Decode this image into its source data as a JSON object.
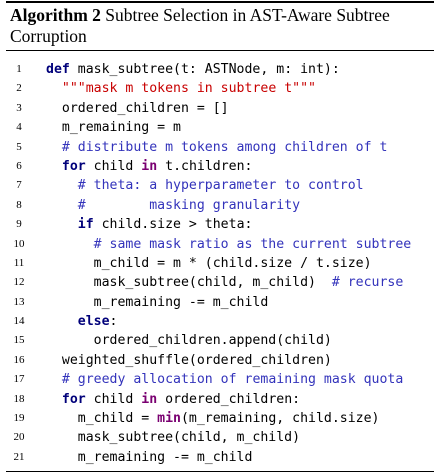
{
  "caption": {
    "label": "Algorithm 2",
    "title": "Subtree Selection in AST-Aware Subtree Corruption"
  },
  "lines": [
    {
      "n": "1",
      "segs": [
        [
          "kw",
          "def "
        ],
        [
          "",
          "mask_subtree(t: ASTNode, m: int):"
        ]
      ]
    },
    {
      "n": "2",
      "segs": [
        [
          "",
          "  "
        ],
        [
          "str",
          "\"\"\"mask m tokens in subtree t\"\"\""
        ]
      ]
    },
    {
      "n": "3",
      "segs": [
        [
          "",
          "  ordered_children = []"
        ]
      ]
    },
    {
      "n": "4",
      "segs": [
        [
          "",
          "  m_remaining = m"
        ]
      ]
    },
    {
      "n": "5",
      "segs": [
        [
          "",
          "  "
        ],
        [
          "com",
          "# distribute m tokens among children of t"
        ]
      ]
    },
    {
      "n": "6",
      "segs": [
        [
          "",
          "  "
        ],
        [
          "kw",
          "for "
        ],
        [
          "",
          "child "
        ],
        [
          "kw2",
          "in "
        ],
        [
          "",
          "t.children:"
        ]
      ]
    },
    {
      "n": "7",
      "segs": [
        [
          "",
          "    "
        ],
        [
          "com",
          "# theta: a hyperparameter to control"
        ]
      ]
    },
    {
      "n": "8",
      "segs": [
        [
          "",
          "    "
        ],
        [
          "com",
          "#        masking granularity"
        ]
      ]
    },
    {
      "n": "9",
      "segs": [
        [
          "",
          "    "
        ],
        [
          "kw",
          "if "
        ],
        [
          "",
          "child.size > theta:"
        ]
      ]
    },
    {
      "n": "10",
      "segs": [
        [
          "",
          "      "
        ],
        [
          "com",
          "# same mask ratio as the current subtree"
        ]
      ]
    },
    {
      "n": "11",
      "segs": [
        [
          "",
          "      m_child = m * (child.size / t.size)"
        ]
      ]
    },
    {
      "n": "12",
      "segs": [
        [
          "",
          "      mask_subtree(child, m_child)  "
        ],
        [
          "com",
          "# recurse"
        ]
      ]
    },
    {
      "n": "13",
      "segs": [
        [
          "",
          "      m_remaining -= m_child"
        ]
      ]
    },
    {
      "n": "14",
      "segs": [
        [
          "",
          "    "
        ],
        [
          "kw",
          "else"
        ],
        [
          "",
          ":"
        ]
      ]
    },
    {
      "n": "15",
      "segs": [
        [
          "",
          "      ordered_children.append(child)"
        ]
      ]
    },
    {
      "n": "16",
      "segs": [
        [
          "",
          "  weighted_shuffle(ordered_children)"
        ]
      ]
    },
    {
      "n": "17",
      "segs": [
        [
          "",
          "  "
        ],
        [
          "com",
          "# greedy allocation of remaining mask quota"
        ]
      ]
    },
    {
      "n": "18",
      "segs": [
        [
          "",
          "  "
        ],
        [
          "kw",
          "for "
        ],
        [
          "",
          "child "
        ],
        [
          "kw2",
          "in "
        ],
        [
          "",
          "ordered_children:"
        ]
      ]
    },
    {
      "n": "19",
      "segs": [
        [
          "",
          "    m_child = "
        ],
        [
          "kw2",
          "min"
        ],
        [
          "",
          "(m_remaining, child.size)"
        ]
      ]
    },
    {
      "n": "20",
      "segs": [
        [
          "",
          "    mask_subtree(child, m_child)"
        ]
      ]
    },
    {
      "n": "21",
      "segs": [
        [
          "",
          "    m_remaining -= m_child"
        ]
      ]
    }
  ]
}
